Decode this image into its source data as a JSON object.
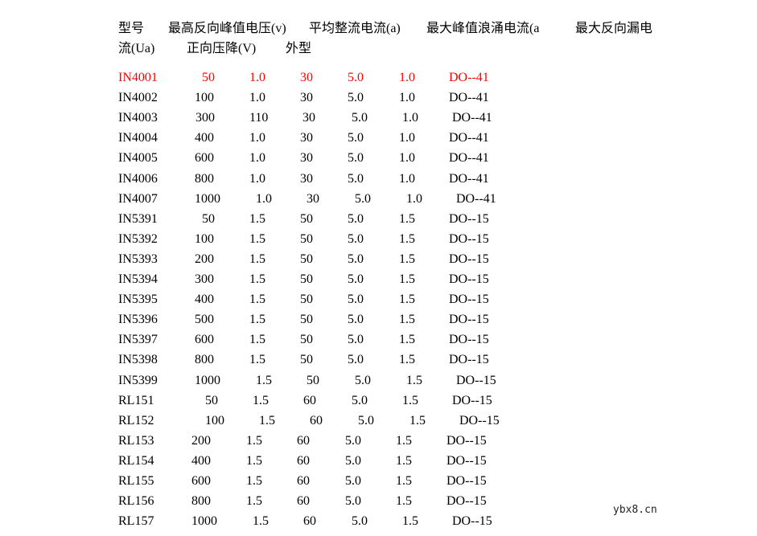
{
  "header": {
    "line1": [
      "型号",
      "最高反向峰值电压(v)",
      "平均整流电流(a)",
      "最大峰值浪涌电流(a",
      "最大反向漏电"
    ],
    "line2": [
      "流(Ua)",
      "正向压降(V)",
      "外型"
    ]
  },
  "highlight_color": "#ff0000",
  "rows": [
    [
      "IN4001",
      "50",
      "1.0",
      "30",
      "5.0",
      "1.0",
      "DO--41"
    ],
    [
      "IN4002",
      "100",
      "1.0",
      "30",
      "5.0",
      "1.0",
      "DO--41"
    ],
    [
      "IN4003",
      "300",
      "110",
      "30",
      "5.0",
      "1.0",
      "DO--41"
    ],
    [
      "IN4004",
      "400",
      "1.0",
      "30",
      "5.0",
      "1.0",
      "DO--41"
    ],
    [
      "IN4005",
      "600",
      "1.0",
      "30",
      "5.0",
      "1.0",
      "DO--41"
    ],
    [
      "IN4006",
      "800",
      "1.0",
      "30",
      "5.0",
      "1.0",
      "DO--41"
    ],
    [
      "IN4007",
      "1000",
      "1.0",
      "30",
      "5.0",
      "1.0",
      "DO--41"
    ],
    [
      "IN5391",
      "50",
      "1.5",
      "50",
      "5.0",
      "1.5",
      "DO--15"
    ],
    [
      "IN5392",
      "100",
      "1.5",
      "50",
      "5.0",
      "1.5",
      "DO--15"
    ],
    [
      "IN5393",
      "200",
      "1.5",
      "50",
      "5.0",
      "1.5",
      "DO--15"
    ],
    [
      "IN5394",
      "300",
      "1.5",
      "50",
      "5.0",
      "1.5",
      "DO--15"
    ],
    [
      "IN5395",
      "400",
      "1.5",
      "50",
      "5.0",
      "1.5",
      "DO--15"
    ],
    [
      "IN5396",
      "500",
      "1.5",
      "50",
      "5.0",
      "1.5",
      "DO--15"
    ],
    [
      "IN5397",
      "600",
      "1.5",
      "50",
      "5.0",
      "1.5",
      "DO--15"
    ],
    [
      "IN5398",
      "800",
      "1.5",
      "50",
      "5.0",
      "1.5",
      "DO--15"
    ],
    [
      "IN5399",
      "1000",
      "1.5",
      "50",
      "5.0",
      "1.5",
      "DO--15"
    ],
    [
      "RL151",
      "50",
      "1.5",
      "60",
      "5.0",
      "1.5",
      "DO--15"
    ],
    [
      "RL152",
      "100",
      "1.5",
      "60",
      "5.0",
      "1.5",
      "DO--15"
    ],
    [
      "RL153",
      "200",
      "1.5",
      "60",
      "5.0",
      "1.5",
      "DO--15"
    ],
    [
      "RL154",
      "400",
      "1.5",
      "60",
      "5.0",
      "1.5",
      "DO--15"
    ],
    [
      "RL155",
      "600",
      "1.5",
      "60",
      "5.0",
      "1.5",
      "DO--15"
    ],
    [
      "RL156",
      "800",
      "1.5",
      "60",
      "5.0",
      "1.5",
      "DO--15"
    ],
    [
      "RL157",
      "1000",
      "1.5",
      "60",
      "5.0",
      "1.5",
      "DO--15"
    ]
  ],
  "watermark": "ybx8.cn"
}
